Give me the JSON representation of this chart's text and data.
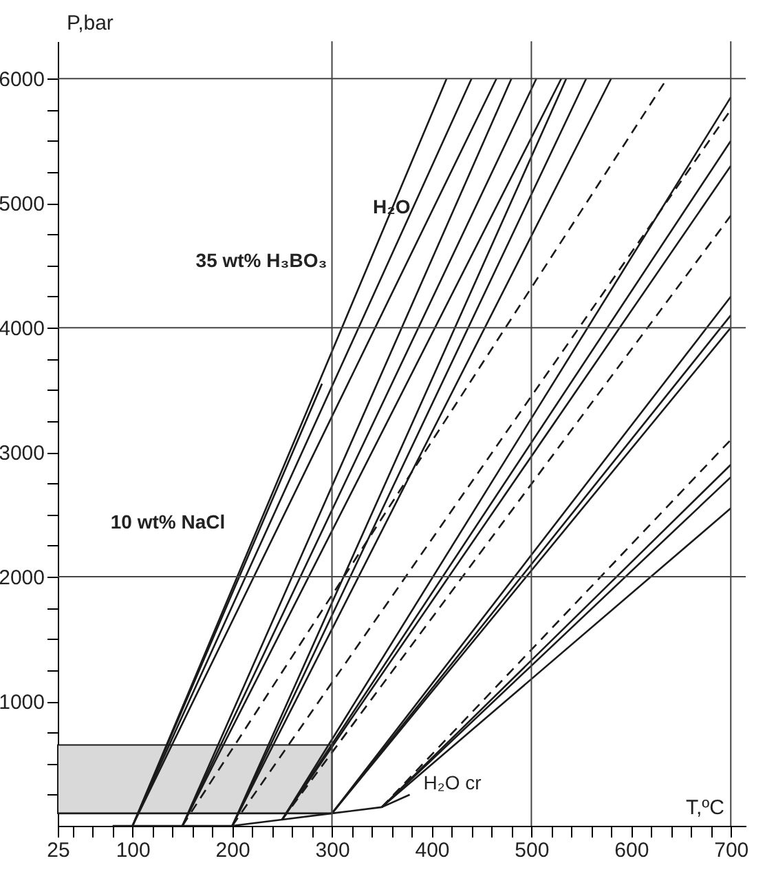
{
  "chart_data": {
    "type": "line",
    "xlabel": "T,ºC",
    "ylabel": "P,bar",
    "xlim": [
      25,
      715
    ],
    "ylim": [
      0,
      6300
    ],
    "xticks": [
      25,
      {
        "value": 40,
        "label": null
      },
      {
        "value": 60,
        "label": null
      },
      {
        "value": 80,
        "label": null
      },
      100,
      {
        "value": 120,
        "label": null
      },
      {
        "value": 140,
        "label": null
      },
      {
        "value": 160,
        "label": null
      },
      {
        "value": 180,
        "label": null
      },
      200,
      {
        "value": 220,
        "label": null
      },
      {
        "value": 240,
        "label": null
      },
      {
        "value": 260,
        "label": null
      },
      {
        "value": 280,
        "label": null
      },
      300,
      {
        "value": 320,
        "label": null
      },
      {
        "value": 340,
        "label": null
      },
      {
        "value": 360,
        "label": null
      },
      {
        "value": 380,
        "label": null
      },
      400,
      {
        "value": 420,
        "label": null
      },
      {
        "value": 440,
        "label": null
      },
      {
        "value": 460,
        "label": null
      },
      {
        "value": 480,
        "label": null
      },
      500,
      {
        "value": 520,
        "label": null
      },
      {
        "value": 540,
        "label": null
      },
      {
        "value": 560,
        "label": null
      },
      {
        "value": 580,
        "label": null
      },
      600,
      {
        "value": 620,
        "label": null
      },
      {
        "value": 640,
        "label": null
      },
      {
        "value": 660,
        "label": null
      },
      {
        "value": 680,
        "label": null
      },
      700
    ],
    "yticks": [
      {
        "value": 250,
        "label": null
      },
      {
        "value": 500,
        "label": null
      },
      {
        "value": 750,
        "label": null
      },
      1000,
      {
        "value": 1250,
        "label": null
      },
      {
        "value": 1500,
        "label": null
      },
      {
        "value": 1750,
        "label": null
      },
      2000,
      {
        "value": 2250,
        "label": null
      },
      {
        "value": 2500,
        "label": null
      },
      {
        "value": 2750,
        "label": null
      },
      3000,
      {
        "value": 3250,
        "label": null
      },
      {
        "value": 3500,
        "label": null
      },
      {
        "value": 3750,
        "label": null
      },
      4000,
      {
        "value": 4250,
        "label": null
      },
      {
        "value": 4500,
        "label": null
      },
      {
        "value": 4750,
        "label": null
      },
      5000,
      {
        "value": 5250,
        "label": null
      },
      {
        "value": 5500,
        "label": null
      },
      {
        "value": 5750,
        "label": null
      },
      6000
    ],
    "grid": false,
    "marker": "none",
    "line_style": "solid",
    "ref_lines": [
      {
        "axis": "x",
        "value": 300,
        "color": "#444444"
      },
      {
        "axis": "x",
        "value": 500,
        "color": "#444444"
      },
      {
        "axis": "x",
        "value": 700,
        "color": "#444444"
      },
      {
        "axis": "y",
        "value": 2000,
        "color": "#444444"
      },
      {
        "axis": "y",
        "value": 4000,
        "color": "#444444"
      },
      {
        "axis": "y",
        "value": 6000,
        "color": "#444444"
      }
    ],
    "annotations": [
      {
        "text": "H₂O",
        "x": 393,
        "y": 4520
      },
      "35 wt% H₃BO₃",
      "10 wt% NaCl",
      {
        "text": "H₂O cr",
        "x": 378,
        "y": 240
      }
    ],
    "series": [
      {
        "color": "#1a1a1a",
        "x": [
          25,
          300
        ],
        "values": [
          100,
          100
        ],
        "lower": [
          100,
          100
        ],
        "upper": [
          650,
          650
        ]
      },
      {
        "color": "#1a1a1a",
        "x": [
          80,
          100,
          150,
          200,
          250,
          300,
          350,
          378
        ],
        "values": [
          0,
          0,
          0,
          0,
          50,
          100,
          150,
          250
        ]
      },
      {
        "color": "#1a1a1a",
        "x": [
          100,
          290
        ],
        "values": [
          0,
          3550
        ]
      },
      {
        "color": "#1a1a1a",
        "x": [
          100,
          415
        ],
        "values": [
          0,
          6000
        ]
      },
      {
        "color": "#1a1a1a",
        "x": [
          100,
          440
        ],
        "values": [
          0,
          6000
        ]
      },
      {
        "color": "#1a1a1a",
        "x": [
          100,
          465
        ],
        "values": [
          0,
          6000
        ]
      },
      {
        "color": "#1a1a1a",
        "x": [
          150,
          480
        ],
        "values": [
          0,
          6000
        ]
      },
      {
        "color": "#1a1a1a",
        "x": [
          150,
          505
        ],
        "values": [
          0,
          6000
        ]
      },
      {
        "color": "#1a1a1a",
        "x": [
          150,
          530
        ],
        "values": [
          0,
          6000
        ]
      },
      {
        "color": "#1a1a1a",
        "x": [
          150,
          636
        ],
        "values": [
          0,
          6000
        ],
        "line_style": "dashed"
      },
      {
        "color": "#1a1a1a",
        "x": [
          200,
          535
        ],
        "values": [
          0,
          6000
        ]
      },
      {
        "color": "#1a1a1a",
        "x": [
          200,
          555
        ],
        "values": [
          0,
          6000
        ]
      },
      {
        "color": "#1a1a1a",
        "x": [
          200,
          580
        ],
        "values": [
          0,
          6000
        ]
      },
      {
        "color": "#1a1a1a",
        "x": [
          200,
          700
        ],
        "values": [
          0,
          5750
        ],
        "line_style": "dashed"
      },
      {
        "color": "#1a1a1a",
        "x": [
          250,
          700
        ],
        "values": [
          50,
          5850
        ]
      },
      {
        "color": "#1a1a1a",
        "x": [
          250,
          700
        ],
        "values": [
          50,
          5500
        ]
      },
      {
        "color": "#1a1a1a",
        "x": [
          250,
          700
        ],
        "values": [
          50,
          5300
        ]
      },
      {
        "color": "#1a1a1a",
        "x": [
          250,
          700
        ],
        "values": [
          50,
          4900
        ],
        "line_style": "dashed"
      },
      {
        "color": "#1a1a1a",
        "x": [
          300,
          700
        ],
        "values": [
          100,
          4250
        ]
      },
      {
        "color": "#1a1a1a",
        "x": [
          300,
          700
        ],
        "values": [
          100,
          4100
        ]
      },
      {
        "color": "#1a1a1a",
        "x": [
          300,
          700
        ],
        "values": [
          100,
          4000
        ]
      },
      {
        "color": "#1a1a1a",
        "x": [
          350,
          700
        ],
        "values": [
          150,
          2550
        ]
      },
      {
        "color": "#1a1a1a",
        "x": [
          350,
          700
        ],
        "values": [
          150,
          2800
        ]
      },
      {
        "color": "#1a1a1a",
        "x": [
          350,
          700
        ],
        "values": [
          150,
          2900
        ]
      },
      {
        "color": "#1a1a1a",
        "x": [
          350,
          700
        ],
        "values": [
          150,
          3100
        ],
        "line_style": "dashed"
      }
    ]
  }
}
